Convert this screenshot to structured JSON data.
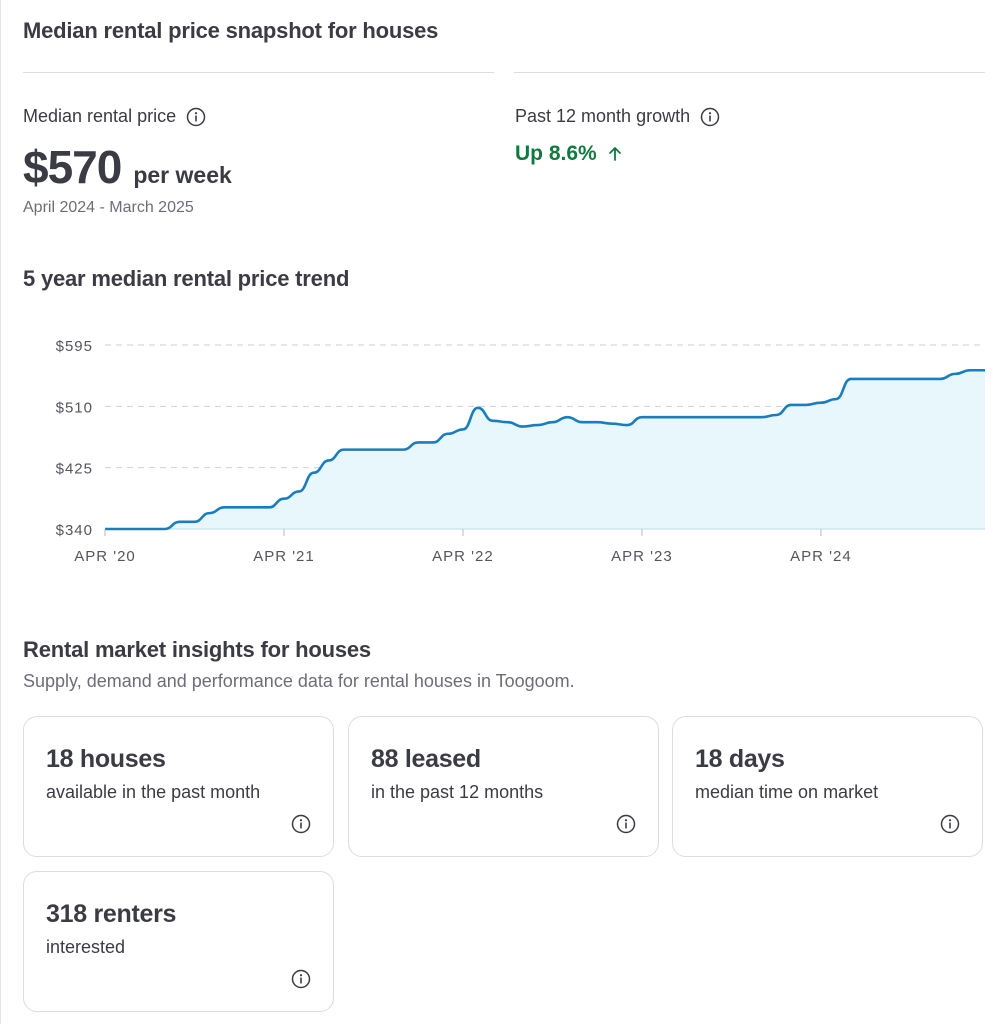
{
  "snapshot": {
    "title": "Median rental price snapshot for houses",
    "median_label": "Median rental price",
    "median_value": "$570",
    "median_unit": "per week",
    "period": "April 2024 - March 2025",
    "growth_label": "Past 12 month growth",
    "growth_value": "Up 8.6%",
    "growth_direction_icon": "arrow-up-icon",
    "info_icon": "info-icon"
  },
  "trend": {
    "title": "5 year median rental price trend"
  },
  "chart_data": {
    "type": "area",
    "title": "5 year median rental price trend",
    "xlabel": "",
    "ylabel": "",
    "x_ticks": [
      "APR '20",
      "APR '21",
      "APR '22",
      "APR '23",
      "APR '24"
    ],
    "y_ticks": [
      "$340",
      "$425",
      "$510",
      "$595"
    ],
    "ylim": [
      340,
      595
    ],
    "xlim": [
      0,
      59
    ],
    "grid": true,
    "colors": {
      "line": "#1a7dbd",
      "fill": "#e8f7fb",
      "grid": "#cfcfd6"
    },
    "series": [
      {
        "x": [
          0,
          1,
          2,
          3,
          4,
          5,
          6,
          7,
          8,
          9,
          10,
          11,
          12,
          13,
          14,
          15,
          16,
          17,
          18,
          19,
          20,
          21,
          22,
          23,
          24,
          25,
          26,
          27,
          28,
          29,
          30,
          31,
          32,
          33,
          34,
          35,
          36,
          37,
          38,
          39,
          40,
          41,
          42,
          43,
          44,
          45,
          46,
          47,
          48,
          49,
          50,
          51,
          52,
          53,
          54,
          55,
          56,
          57,
          58,
          59
        ],
        "values": [
          340,
          340,
          340,
          340,
          340,
          350,
          350,
          362,
          370,
          370,
          370,
          370,
          382,
          392,
          418,
          435,
          450,
          450,
          450,
          450,
          450,
          460,
          460,
          472,
          478,
          508,
          490,
          488,
          482,
          484,
          488,
          495,
          488,
          488,
          486,
          484,
          495,
          495,
          495,
          495,
          495,
          495,
          495,
          495,
          495,
          498,
          512,
          512,
          515,
          520,
          548,
          548,
          548,
          548,
          548,
          548,
          548,
          555,
          560,
          560
        ]
      }
    ]
  },
  "insights": {
    "title": "Rental market insights for houses",
    "subtitle": "Supply, demand and performance data for rental houses in Toogoom.",
    "cards": [
      {
        "headline": "18 houses",
        "desc": "available in the past month"
      },
      {
        "headline": "88 leased",
        "desc": "in the past 12 months"
      },
      {
        "headline": "18 days",
        "desc": "median time on market"
      },
      {
        "headline": "318 renters",
        "desc": "interested"
      }
    ]
  }
}
